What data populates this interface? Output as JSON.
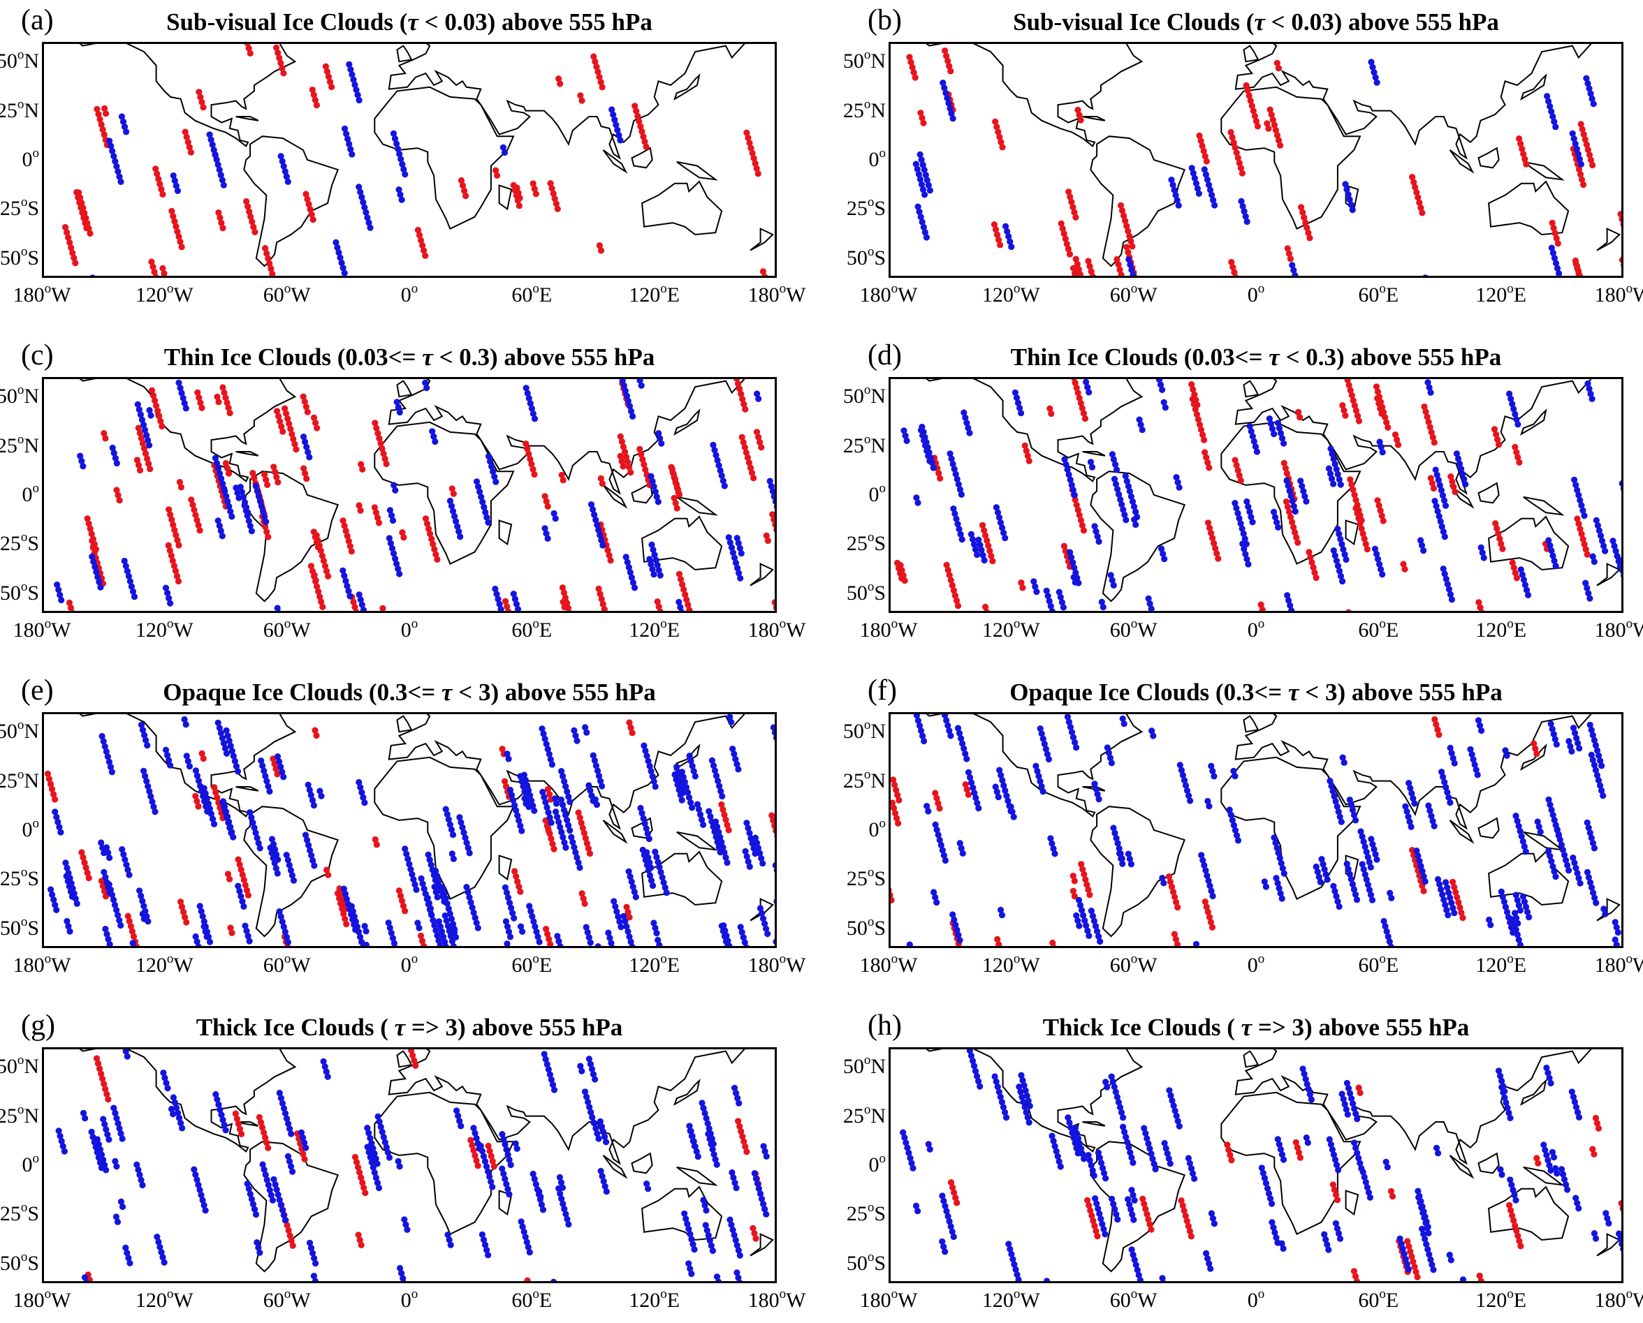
{
  "figure": {
    "symbol_note": "τ",
    "colors": {
      "red": "#e8141c",
      "blue": "#1414e0",
      "coast": "#000000"
    },
    "lat_ticks": [
      {
        "value": 50,
        "num": "50",
        "deg": "o",
        "hemi": "N"
      },
      {
        "value": 25,
        "num": "25",
        "deg": "o",
        "hemi": "N"
      },
      {
        "value": 0,
        "num": "0",
        "deg": "o",
        "hemi": ""
      },
      {
        "value": -25,
        "num": "25",
        "deg": "o",
        "hemi": "S"
      },
      {
        "value": -50,
        "num": "50",
        "deg": "o",
        "hemi": "S"
      }
    ],
    "lon_ticks": [
      {
        "value": -180,
        "num": "180",
        "deg": "o",
        "hemi": "W"
      },
      {
        "value": -120,
        "num": "120",
        "deg": "o",
        "hemi": "W"
      },
      {
        "value": -60,
        "num": "60",
        "deg": "o",
        "hemi": "W"
      },
      {
        "value": 0,
        "num": "0",
        "deg": "o",
        "hemi": ""
      },
      {
        "value": 60,
        "num": "60",
        "deg": "o",
        "hemi": "E"
      },
      {
        "value": 120,
        "num": "120",
        "deg": "o",
        "hemi": "E"
      },
      {
        "value": 180,
        "num": "180",
        "deg": "o",
        "hemi": "W"
      }
    ],
    "lat_range": [
      -60,
      60
    ],
    "lon_range": [
      -180,
      180
    ],
    "panels": [
      {
        "id": "a",
        "letter": "(a)",
        "title_pre": "Sub-visual Ice Clouds (",
        "title_tau": "τ",
        "title_post": " < 0.03) above 555 hPa",
        "density": {
          "red": 0.55,
          "blue": 0.25
        },
        "seed": 11
      },
      {
        "id": "b",
        "letter": "(b)",
        "title_pre": "Sub-visual Ice Clouds (",
        "title_tau": "τ",
        "title_post": " < 0.03) above 555 hPa",
        "density": {
          "red": 0.55,
          "blue": 0.3
        },
        "seed": 23
      },
      {
        "id": "c",
        "letter": "(c)",
        "title_pre": "Thin Ice Clouds (0.03<= ",
        "title_tau": "τ",
        "title_post": " < 0.3) above 555 hPa",
        "density": {
          "red": 1.1,
          "blue": 0.8
        },
        "seed": 37
      },
      {
        "id": "d",
        "letter": "(d)",
        "title_pre": "Thin Ice Clouds (0.03<= ",
        "title_tau": "τ",
        "title_post": " < 0.3) above 555 hPa",
        "density": {
          "red": 0.7,
          "blue": 1.1
        },
        "seed": 41
      },
      {
        "id": "e",
        "letter": "(e)",
        "title_pre": "Opaque Ice Clouds (0.3<= ",
        "title_tau": "τ",
        "title_post": " < 3) above 555 hPa",
        "density": {
          "red": 0.55,
          "blue": 2.0
        },
        "seed": 53
      },
      {
        "id": "f",
        "letter": "(f)",
        "title_pre": "Opaque Ice Clouds (0.3<= ",
        "title_tau": "τ",
        "title_post": " < 3) above 555 hPa",
        "density": {
          "red": 0.3,
          "blue": 1.4
        },
        "seed": 67
      },
      {
        "id": "g",
        "letter": "(g)",
        "title_pre": "Thick Ice Clouds ( ",
        "title_tau": "τ",
        "title_post": " => 3) above 555 hPa",
        "density": {
          "red": 0.25,
          "blue": 1.2
        },
        "seed": 71
      },
      {
        "id": "h",
        "letter": "(h)",
        "title_pre": "Thick Ice Clouds ( ",
        "title_tau": "τ",
        "title_post": " => 3) above 555 hPa",
        "density": {
          "red": 0.3,
          "blue": 1.1
        },
        "seed": 89
      }
    ]
  }
}
